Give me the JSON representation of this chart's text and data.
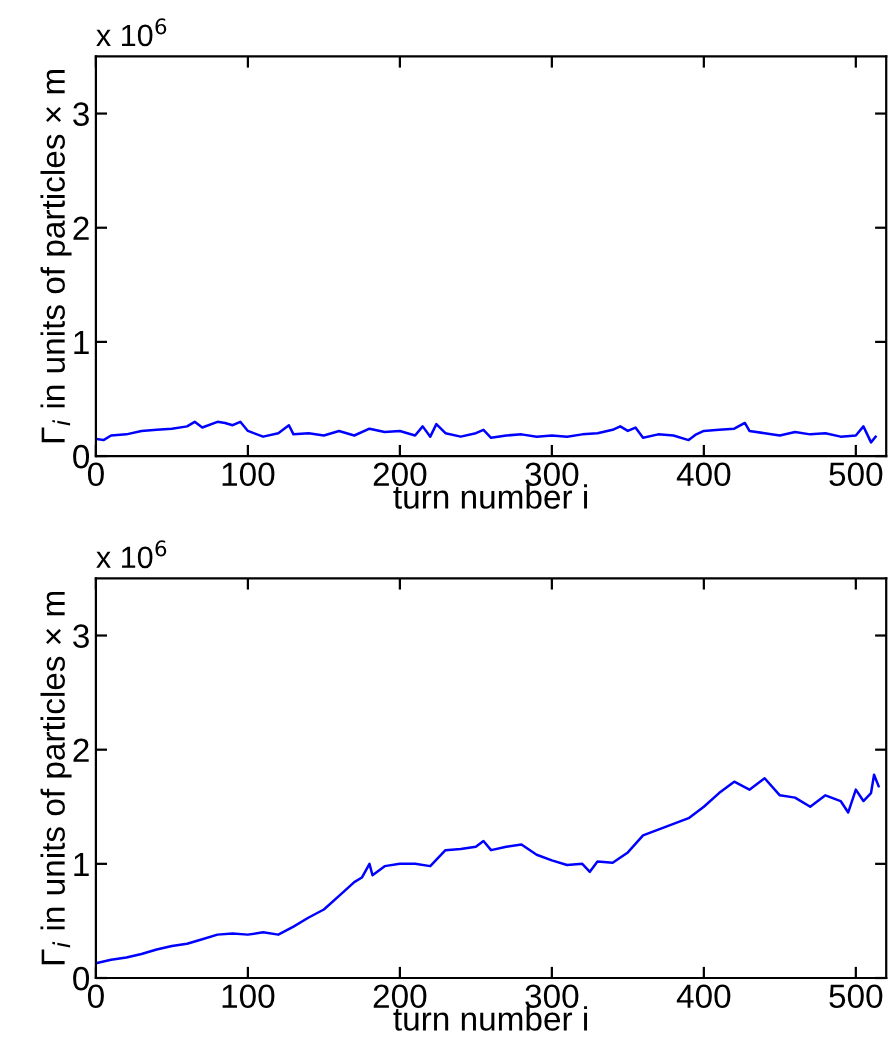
{
  "chart_data": [
    {
      "type": "line",
      "xlabel": "turn number i",
      "ylabel": "Γ$_{i}$ in units of particles × m",
      "annotations": [
        "x 10$^{6}$"
      ],
      "xlim": [
        0,
        520
      ],
      "ylim": [
        0,
        3.5
      ],
      "xticks": [
        0,
        100,
        200,
        300,
        400,
        500
      ],
      "yticks": [
        0,
        1,
        2,
        3
      ],
      "grid": false,
      "legend": false,
      "x": [
        0,
        5,
        10,
        20,
        30,
        40,
        50,
        60,
        65,
        70,
        80,
        85,
        90,
        95,
        100,
        110,
        120,
        127,
        130,
        140,
        150,
        160,
        170,
        180,
        190,
        200,
        210,
        215,
        220,
        224,
        230,
        240,
        250,
        255,
        260,
        270,
        280,
        290,
        300,
        310,
        320,
        330,
        340,
        345,
        350,
        355,
        360,
        370,
        380,
        390,
        395,
        400,
        410,
        420,
        427,
        430,
        440,
        450,
        460,
        470,
        480,
        490,
        500,
        505,
        510,
        513
      ],
      "series": [
        {
          "color": "#0000ff",
          "values": [
            0.15,
            0.14,
            0.18,
            0.19,
            0.22,
            0.23,
            0.24,
            0.26,
            0.3,
            0.25,
            0.3,
            0.29,
            0.27,
            0.3,
            0.22,
            0.17,
            0.2,
            0.27,
            0.19,
            0.2,
            0.18,
            0.22,
            0.18,
            0.24,
            0.21,
            0.22,
            0.18,
            0.26,
            0.17,
            0.28,
            0.2,
            0.17,
            0.2,
            0.23,
            0.16,
            0.18,
            0.19,
            0.17,
            0.18,
            0.17,
            0.19,
            0.2,
            0.23,
            0.26,
            0.22,
            0.25,
            0.16,
            0.19,
            0.18,
            0.14,
            0.19,
            0.22,
            0.23,
            0.24,
            0.29,
            0.22,
            0.2,
            0.18,
            0.21,
            0.19,
            0.2,
            0.17,
            0.18,
            0.26,
            0.12,
            0.17
          ]
        }
      ]
    },
    {
      "type": "line",
      "xlabel": "turn number i",
      "ylabel": "Γ$_{i}$ in units of particles × m",
      "annotations": [
        "x 10$^{6}$"
      ],
      "xlim": [
        0,
        520
      ],
      "ylim": [
        0,
        3.5
      ],
      "xticks": [
        0,
        100,
        200,
        300,
        400,
        500
      ],
      "yticks": [
        0,
        1,
        2,
        3
      ],
      "grid": false,
      "legend": false,
      "x": [
        0,
        10,
        20,
        30,
        40,
        50,
        60,
        70,
        80,
        90,
        100,
        110,
        120,
        130,
        140,
        150,
        160,
        170,
        175,
        180,
        182,
        190,
        200,
        210,
        220,
        230,
        240,
        250,
        255,
        260,
        270,
        280,
        290,
        300,
        310,
        320,
        325,
        330,
        340,
        350,
        360,
        370,
        380,
        390,
        400,
        410,
        420,
        430,
        440,
        450,
        460,
        470,
        480,
        490,
        495,
        500,
        505,
        510,
        512,
        515
      ],
      "series": [
        {
          "color": "#0000ff",
          "values": [
            0.13,
            0.16,
            0.18,
            0.21,
            0.25,
            0.28,
            0.3,
            0.34,
            0.38,
            0.39,
            0.38,
            0.4,
            0.38,
            0.45,
            0.53,
            0.6,
            0.72,
            0.84,
            0.88,
            1.0,
            0.9,
            0.98,
            1.0,
            1.0,
            0.98,
            1.12,
            1.13,
            1.15,
            1.2,
            1.12,
            1.15,
            1.17,
            1.08,
            1.03,
            0.99,
            1.0,
            0.93,
            1.02,
            1.01,
            1.1,
            1.25,
            1.3,
            1.35,
            1.4,
            1.5,
            1.62,
            1.72,
            1.65,
            1.75,
            1.6,
            1.58,
            1.5,
            1.6,
            1.55,
            1.45,
            1.65,
            1.55,
            1.62,
            1.78,
            1.68
          ]
        }
      ]
    }
  ]
}
